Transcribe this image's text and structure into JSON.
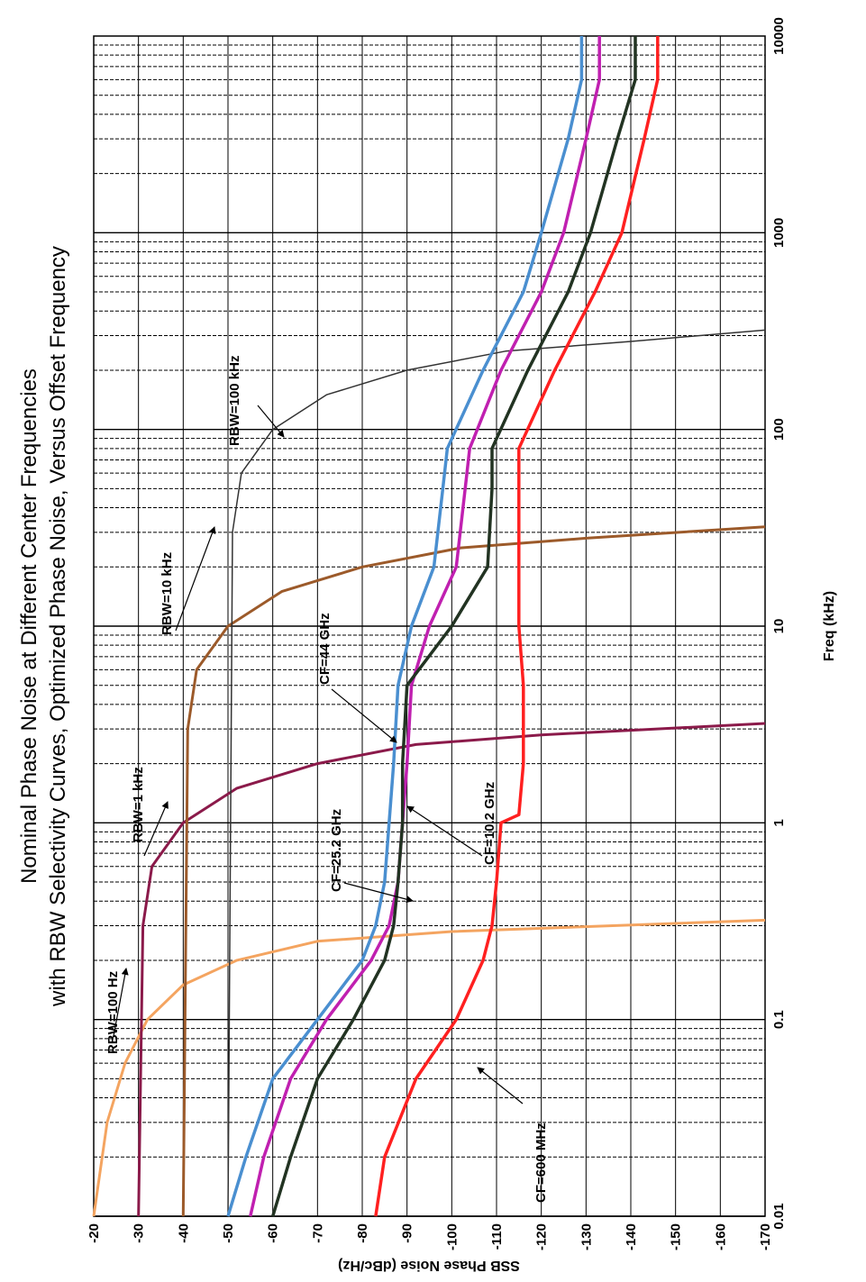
{
  "chart_data": {
    "type": "line",
    "title_line1": "Nominal Phase Noise at Different Center Frequencies",
    "title_line2": "with RBW Selectivity Curves, Optimized Phase Noise, Versus Offset Frequency",
    "xlabel": "Freq (kHz)",
    "ylabel": "SSB Phase Noise (dBc/Hz)",
    "xscale": "log",
    "xlim": [
      0.01,
      10000
    ],
    "ylim": [
      -170,
      -20
    ],
    "grid": true,
    "x_ticks": [
      "0.01",
      "0.1",
      "1",
      "10",
      "100",
      "1000",
      "10000"
    ],
    "y_ticks": [
      "-20",
      "-30",
      "-40",
      "-50",
      "-60",
      "-70",
      "-80",
      "-90",
      "-100",
      "-110",
      "-120",
      "-130",
      "-140",
      "-150",
      "-160",
      "-170"
    ],
    "series": [
      {
        "name": "RBW=100 Hz",
        "color": "#f4a460",
        "x": [
          0.01,
          0.03,
          0.06,
          0.1,
          0.15,
          0.2,
          0.25,
          0.28,
          0.32
        ],
        "y": [
          -20,
          -23,
          -27,
          -32,
          -40,
          -52,
          -70,
          -100,
          -170
        ]
      },
      {
        "name": "RBW=1 kHz",
        "color": "#8b1a4a",
        "x": [
          0.01,
          0.3,
          0.6,
          1.0,
          1.5,
          2.0,
          2.5,
          2.8,
          3.2
        ],
        "y": [
          -30,
          -31,
          -33,
          -40,
          -52,
          -70,
          -92,
          -120,
          -170
        ]
      },
      {
        "name": "RBW=10 kHz",
        "color": "#9c5a2a",
        "x": [
          0.01,
          3,
          6,
          10,
          15,
          20,
          25,
          28,
          32
        ],
        "y": [
          -40,
          -41,
          -43,
          -50,
          -62,
          -80,
          -102,
          -130,
          -170
        ]
      },
      {
        "name": "RBW=100 kHz",
        "color": "#333333",
        "x": [
          0.01,
          30,
          60,
          100,
          150,
          200,
          250,
          280,
          320
        ],
        "y": [
          -50,
          -51,
          -53,
          -60,
          -72,
          -90,
          -112,
          -140,
          -170
        ]
      },
      {
        "name": "CF=44 GHz",
        "color": "#4a8fd0",
        "x": [
          0.01,
          0.02,
          0.05,
          0.1,
          0.2,
          0.3,
          0.5,
          1,
          2,
          5,
          10,
          20,
          50,
          80,
          200,
          500,
          1000,
          3000,
          6000,
          10000
        ],
        "y": [
          -50,
          -54,
          -60,
          -70,
          -80,
          -83,
          -85,
          -86,
          -87,
          -88,
          -91,
          -96,
          -98,
          -99,
          -107,
          -116,
          -120,
          -126,
          -129,
          -129
        ]
      },
      {
        "name": "CF=25.2 GHz",
        "color": "#c020b0",
        "x": [
          0.01,
          0.02,
          0.05,
          0.1,
          0.2,
          0.3,
          0.5,
          1,
          2,
          5,
          10,
          20,
          50,
          80,
          200,
          500,
          1000,
          3000,
          6000,
          10000
        ],
        "y": [
          -55,
          -58,
          -64,
          -72,
          -82,
          -86,
          -88,
          -89,
          -90,
          -91,
          -95,
          -101,
          -103,
          -104,
          -111,
          -120,
          -125,
          -130,
          -133,
          -133
        ]
      },
      {
        "name": "CF=10.2 GHz",
        "color": "#223322",
        "x": [
          0.01,
          0.02,
          0.05,
          0.1,
          0.2,
          0.3,
          0.5,
          1,
          2,
          5,
          10,
          20,
          50,
          80,
          200,
          500,
          1000,
          3000,
          6000,
          10000
        ],
        "y": [
          -60,
          -64,
          -70,
          -78,
          -85,
          -87,
          -88,
          -89,
          -89,
          -90,
          -100,
          -108,
          -109,
          -109,
          -117,
          -126,
          -131,
          -137,
          -141,
          -141
        ]
      },
      {
        "name": "CF=600 MHz",
        "color": "#ff2020",
        "x": [
          0.01,
          0.02,
          0.05,
          0.1,
          0.2,
          0.3,
          0.5,
          1,
          1.1,
          2,
          5,
          10,
          20,
          50,
          80,
          200,
          500,
          1000,
          3000,
          6000,
          10000
        ],
        "y": [
          -83,
          -85,
          -92,
          -101,
          -107,
          -109,
          -110,
          -111,
          -115,
          -116,
          -116,
          -115,
          -115,
          -115,
          -115,
          -123,
          -132,
          -138,
          -143,
          -146,
          -146
        ]
      }
    ],
    "annotations": [
      {
        "text": "RBW=100 Hz"
      },
      {
        "text": "RBW=1 kHz"
      },
      {
        "text": "RBW=10  kHz"
      },
      {
        "text": "RBW=100 kHz"
      },
      {
        "text": "CF=44 GHz"
      },
      {
        "text": "CF=25.2 GHz"
      },
      {
        "text": "CF=10.2 GHz"
      },
      {
        "text": "CF=600 MHz"
      }
    ]
  }
}
